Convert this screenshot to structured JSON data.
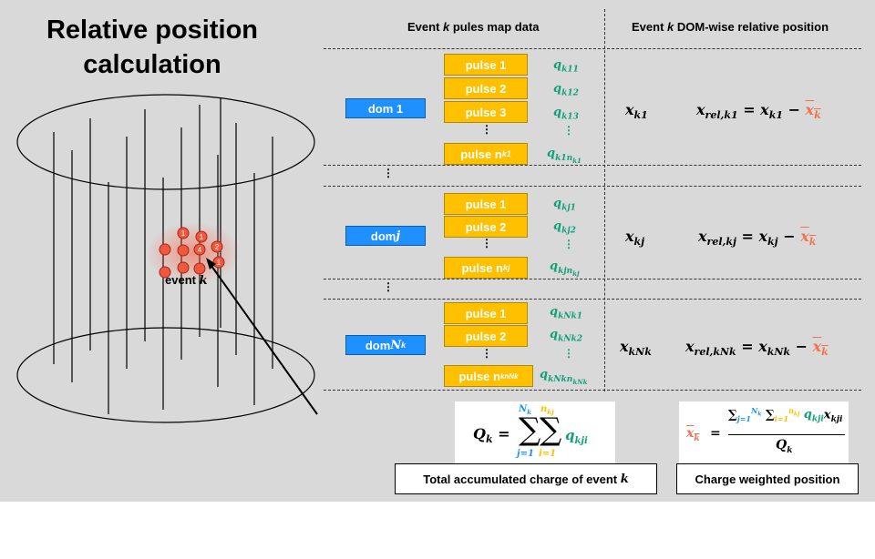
{
  "title": "Relative position calculation",
  "headers": {
    "left_prefix": "Event ",
    "left_var": "k",
    "left_suffix": " pules map data",
    "right_prefix": "Event ",
    "right_var": "k",
    "right_suffix": " DOM-wise relative position"
  },
  "doms": [
    {
      "label": "dom 1",
      "pulses": [
        "pulse 1",
        "pulse 2",
        "pulse 3"
      ],
      "last_pulse": "pulse n",
      "last_pulse_sub": "k1",
      "charges": [
        "k11",
        "k12",
        "k13"
      ],
      "last_charge": "k1n",
      "last_charge_sub2": "k1",
      "x_sub": "k1",
      "rel_sub": "rel,k1",
      "rhs_sub": "k1"
    },
    {
      "label": "dom ",
      "label_var": "j",
      "pulses": [
        "pulse 1",
        "pulse 2"
      ],
      "last_pulse": "pulse n",
      "last_pulse_sub": "kj",
      "charges": [
        "kj1",
        "kj2"
      ],
      "last_charge": "kjn",
      "last_charge_sub2": "kj",
      "x_sub": "kj",
      "rel_sub": "rel,kj",
      "rhs_sub": "kj"
    },
    {
      "label": "dom ",
      "label_var": "N",
      "label_var_sub": "k",
      "pulses": [
        "pulse 1",
        "pulse 2"
      ],
      "last_pulse": "pulse n",
      "last_pulse_sub": "knNk",
      "charges": [
        "kNk1",
        "kNk2"
      ],
      "last_charge": "kNkn",
      "last_charge_sub2": "kNk",
      "x_sub": "kNk",
      "rel_sub": "rel,kNk",
      "rhs_sub": "kNk"
    }
  ],
  "event_label": "event ",
  "event_var": "k",
  "event_hits": [
    "1",
    "1",
    "4",
    "2",
    "1"
  ],
  "formula_Q": {
    "lhs": "Q",
    "lhs_sub": "k",
    "upper1": "N",
    "upper1_sub": "k",
    "lower1": "j=1",
    "upper2": "n",
    "upper2_sub": "kj",
    "lower2": "i=1",
    "term": "q",
    "term_sub": "kji"
  },
  "formula_xbar": {
    "num_term": "q",
    "num_term_sub": "kji",
    "x": "x",
    "x_sub": "kji",
    "den": "Q",
    "den_sub": "k"
  },
  "labels": {
    "total_charge": "Total accumulated charge of event ",
    "total_charge_var": "k",
    "weighted": "Charge weighted position"
  },
  "colors": {
    "dom": "#1e90ff",
    "pulse": "#ffc000",
    "charge": "#12a079",
    "mean": "#f4704f"
  }
}
